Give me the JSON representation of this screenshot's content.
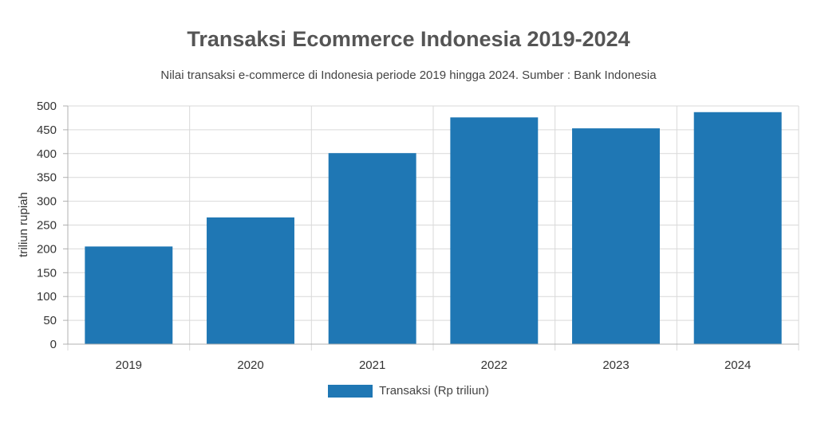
{
  "colors": {
    "bar": "#1f77b4",
    "grid": "#d9d9d9",
    "axis": "#b0b0b0"
  },
  "chart_data": {
    "type": "bar",
    "title": "Transaksi Ecommerce Indonesia 2019-2024",
    "subtitle": "Nilai transaksi e-commerce di Indonesia periode 2019 hingga 2024. Sumber : Bank Indonesia",
    "xlabel": "",
    "ylabel": "triliun rupiah",
    "categories": [
      "2019",
      "2020",
      "2021",
      "2022",
      "2023",
      "2024"
    ],
    "series": [
      {
        "name": "Transaksi (Rp triliun)",
        "values": [
          205,
          266,
          401,
          476,
          453,
          487
        ]
      }
    ],
    "ylim": [
      0,
      500
    ],
    "yticks": [
      "0",
      "50",
      "100",
      "150",
      "200",
      "250",
      "300",
      "350",
      "400",
      "450",
      "500"
    ],
    "grid": true,
    "legend_position": "bottom"
  }
}
